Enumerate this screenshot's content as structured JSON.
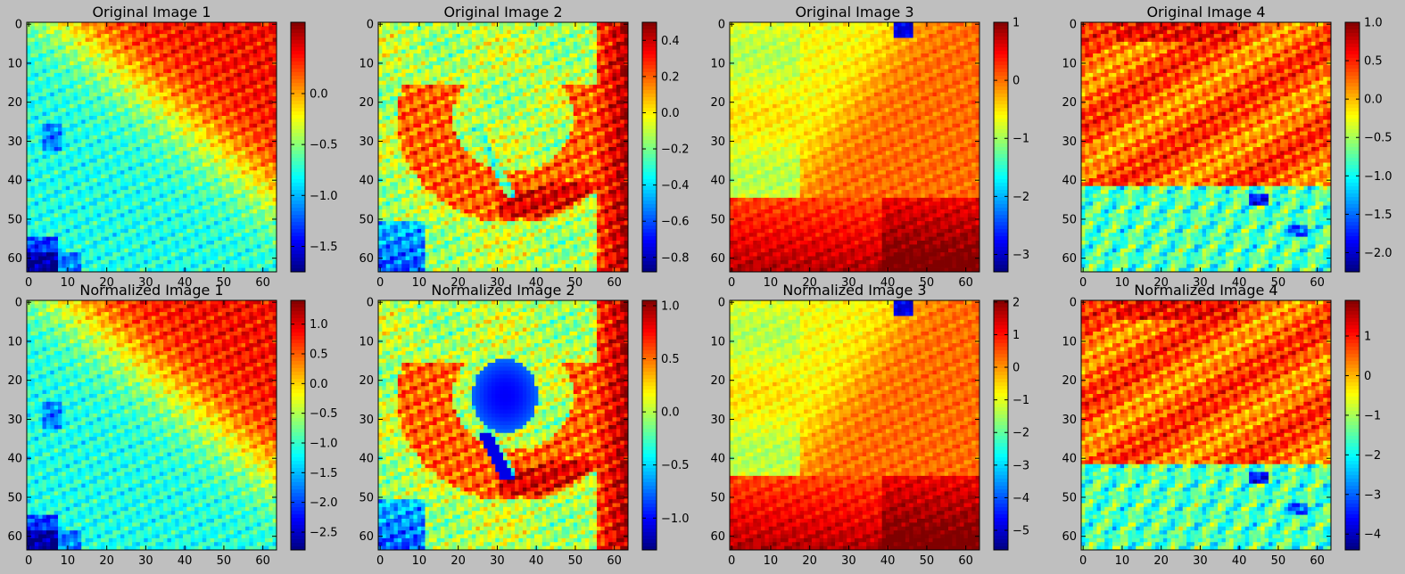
{
  "figure": {
    "background": "#bfbfbf",
    "colormap": "jet",
    "rows": 2,
    "cols": 4
  },
  "chart_data": [
    {
      "type": "heatmap",
      "title": "Original Image 1",
      "xticks": [
        0,
        10,
        20,
        30,
        40,
        50,
        60
      ],
      "yticks": [
        0,
        10,
        20,
        30,
        40,
        50,
        60
      ],
      "xlim": [
        0,
        63
      ],
      "ylim": [
        63,
        0
      ],
      "colorbar": {
        "ticks": [
          "0.0",
          "−0.5",
          "−1.0",
          "−1.5"
        ],
        "tick_values": [
          0.0,
          -0.5,
          -1.0,
          -1.5
        ],
        "range": [
          -1.75,
          0.7
        ]
      },
      "pattern": "orig1"
    },
    {
      "type": "heatmap",
      "title": "Original Image 2",
      "xticks": [
        0,
        10,
        20,
        30,
        40,
        50,
        60
      ],
      "yticks": [
        0,
        10,
        20,
        30,
        40,
        50,
        60
      ],
      "xlim": [
        0,
        63
      ],
      "ylim": [
        63,
        0
      ],
      "colorbar": {
        "ticks": [
          "0.4",
          "0.2",
          "0.0",
          "−0.2",
          "−0.4",
          "−0.6",
          "−0.8"
        ],
        "tick_values": [
          0.4,
          0.2,
          0.0,
          -0.2,
          -0.4,
          -0.6,
          -0.8
        ],
        "range": [
          -0.88,
          0.5
        ]
      },
      "pattern": "orig2"
    },
    {
      "type": "heatmap",
      "title": "Original Image 3",
      "xticks": [
        0,
        10,
        20,
        30,
        40,
        50,
        60
      ],
      "yticks": [
        0,
        10,
        20,
        30,
        40,
        50,
        60
      ],
      "xlim": [
        0,
        63
      ],
      "ylim": [
        63,
        0
      ],
      "colorbar": {
        "ticks": [
          "1",
          "0",
          "−1",
          "−2",
          "−3"
        ],
        "tick_values": [
          1,
          0,
          -1,
          -2,
          -3
        ],
        "range": [
          -3.3,
          1.0
        ]
      },
      "pattern": "orig3"
    },
    {
      "type": "heatmap",
      "title": "Original Image 4",
      "xticks": [
        0,
        10,
        20,
        30,
        40,
        50,
        60
      ],
      "yticks": [
        0,
        10,
        20,
        30,
        40,
        50,
        60
      ],
      "xlim": [
        0,
        63
      ],
      "ylim": [
        63,
        0
      ],
      "colorbar": {
        "ticks": [
          "1.0",
          "0.5",
          "0.0",
          "−0.5",
          "−1.0",
          "−1.5",
          "−2.0"
        ],
        "tick_values": [
          1.0,
          0.5,
          0.0,
          -0.5,
          -1.0,
          -1.5,
          -2.0
        ],
        "range": [
          -2.25,
          1.0
        ]
      },
      "pattern": "orig4"
    },
    {
      "type": "heatmap",
      "title": "Normalized Image 1",
      "xticks": [
        0,
        10,
        20,
        30,
        40,
        50,
        60
      ],
      "yticks": [
        0,
        10,
        20,
        30,
        40,
        50,
        60
      ],
      "xlim": [
        0,
        63
      ],
      "ylim": [
        63,
        0
      ],
      "colorbar": {
        "ticks": [
          "1.0",
          "0.5",
          "0.0",
          "−0.5",
          "−1.0",
          "−1.5",
          "−2.0",
          "−2.5"
        ],
        "tick_values": [
          1.0,
          0.5,
          0.0,
          -0.5,
          -1.0,
          -1.5,
          -2.0,
          -2.5
        ],
        "range": [
          -2.8,
          1.4
        ]
      },
      "pattern": "orig1"
    },
    {
      "type": "heatmap",
      "title": "Normalized Image 2",
      "xticks": [
        0,
        10,
        20,
        30,
        40,
        50,
        60
      ],
      "yticks": [
        0,
        10,
        20,
        30,
        40,
        50,
        60
      ],
      "xlim": [
        0,
        63
      ],
      "ylim": [
        63,
        0
      ],
      "colorbar": {
        "ticks": [
          "1.0",
          "0.5",
          "0.0",
          "−0.5",
          "−1.0"
        ],
        "tick_values": [
          1.0,
          0.5,
          0.0,
          -0.5,
          -1.0
        ],
        "range": [
          -1.3,
          1.05
        ]
      },
      "pattern": "norm2"
    },
    {
      "type": "heatmap",
      "title": "Normalized Image 3",
      "xticks": [
        0,
        10,
        20,
        30,
        40,
        50,
        60
      ],
      "yticks": [
        0,
        10,
        20,
        30,
        40,
        50,
        60
      ],
      "xlim": [
        0,
        63
      ],
      "ylim": [
        63,
        0
      ],
      "colorbar": {
        "ticks": [
          "2",
          "1",
          "0",
          "−1",
          "−2",
          "−3",
          "−4",
          "−5"
        ],
        "tick_values": [
          2,
          1,
          0,
          -1,
          -2,
          -3,
          -4,
          -5
        ],
        "range": [
          -5.6,
          2.05
        ]
      },
      "pattern": "orig3"
    },
    {
      "type": "heatmap",
      "title": "Normalized Image 4",
      "xticks": [
        0,
        10,
        20,
        30,
        40,
        50,
        60
      ],
      "yticks": [
        0,
        10,
        20,
        30,
        40,
        50,
        60
      ],
      "xlim": [
        0,
        63
      ],
      "ylim": [
        63,
        0
      ],
      "colorbar": {
        "ticks": [
          "1",
          "0",
          "−1",
          "−2",
          "−3",
          "−4"
        ],
        "tick_values": [
          1,
          0,
          -1,
          -2,
          -3,
          -4
        ],
        "range": [
          -4.4,
          1.9
        ]
      },
      "pattern": "orig4"
    }
  ]
}
